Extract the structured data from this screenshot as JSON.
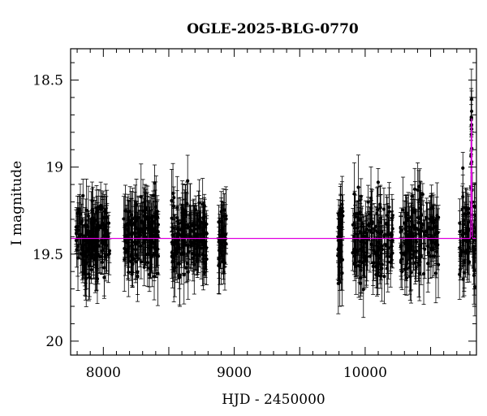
{
  "chart_data": {
    "type": "scatter",
    "title": "OGLE-2025-BLG-0770",
    "xlabel": "HJD - 2450000",
    "ylabel": "I magnitude",
    "xlim": [
      7750,
      10850
    ],
    "ylim": [
      20.08,
      18.32
    ],
    "y_inverted": true,
    "x_ticks": [
      8000,
      9000,
      10000
    ],
    "x_tick_labels": [
      "8000",
      "9000",
      "10000"
    ],
    "y_ticks": [
      18.5,
      19,
      19.5,
      20
    ],
    "y_tick_labels": [
      "18.5",
      "19",
      "19.5",
      "20"
    ],
    "grid": false,
    "legend": "none",
    "baseline_magnitude": 19.41,
    "peak": {
      "hjd": 10812,
      "magnitude": 18.72
    },
    "seasons": [
      {
        "start": 7790,
        "end": 8050,
        "n": 160
      },
      {
        "start": 8150,
        "end": 8420,
        "n": 160
      },
      {
        "start": 8520,
        "end": 8790,
        "n": 170
      },
      {
        "start": 8880,
        "end": 8940,
        "n": 40
      },
      {
        "start": 9790,
        "end": 9830,
        "n": 40
      },
      {
        "start": 9900,
        "end": 10210,
        "n": 160
      },
      {
        "start": 10270,
        "end": 10560,
        "n": 150
      },
      {
        "start": 10720,
        "end": 10850,
        "n": 80
      }
    ],
    "series": [
      {
        "kind": "points",
        "color": "#000000"
      },
      {
        "kind": "model",
        "color": "#e000e0"
      }
    ]
  }
}
